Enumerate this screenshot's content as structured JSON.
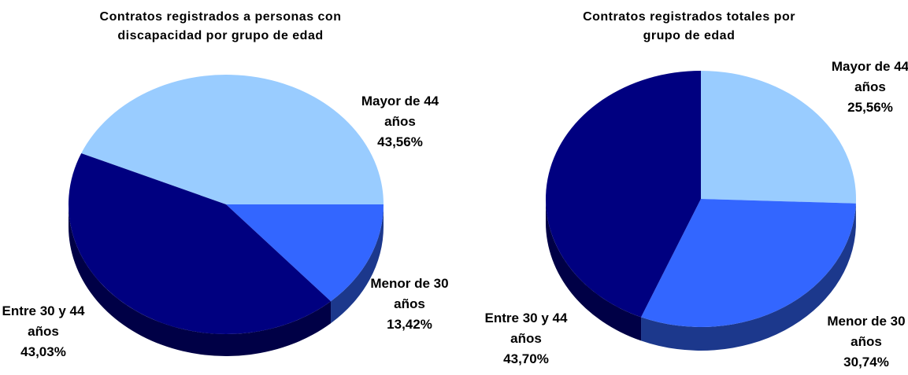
{
  "chart_data": [
    {
      "type": "pie3d",
      "title": "Contratos registrados a personas con discapacidad por grupo de edad",
      "categories": [
        "Mayor de 44 años",
        "Menor de 30 años",
        "Entre 30 y 44 años"
      ],
      "values": [
        43.56,
        13.42,
        43.03
      ],
      "value_labels": [
        "43,56%",
        "13,42%",
        "43,03%"
      ],
      "colors": [
        "#99ccff",
        "#3366ff",
        "#000080"
      ]
    },
    {
      "type": "pie3d",
      "title": "Contratos registrados totales por grupo de edad",
      "categories": [
        "Mayor de 44 años",
        "Menor de 30 años",
        "Entre 30 y 44 años"
      ],
      "values": [
        25.56,
        30.74,
        43.7
      ],
      "value_labels": [
        "25,56%",
        "30,74%",
        "43,70%"
      ],
      "colors": [
        "#99ccff",
        "#3366ff",
        "#000080"
      ]
    }
  ]
}
